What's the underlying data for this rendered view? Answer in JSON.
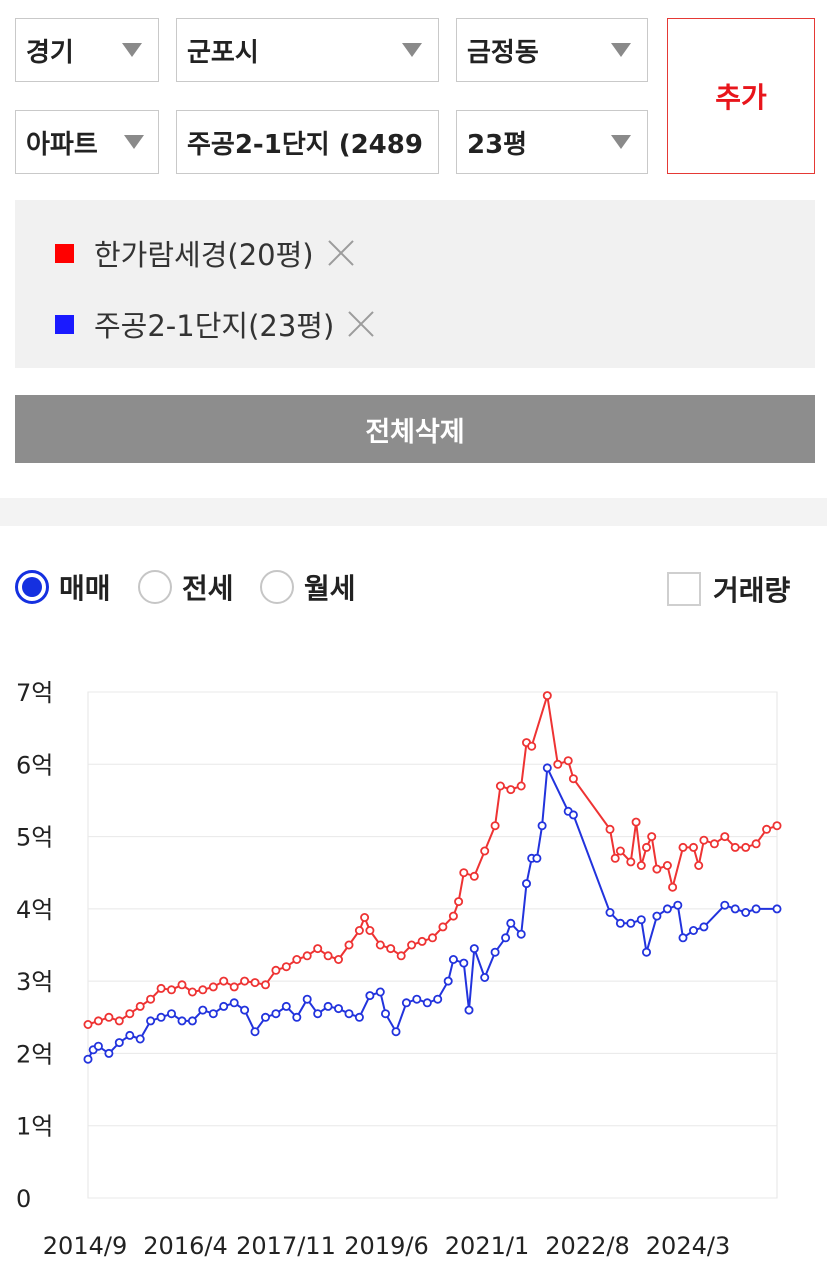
{
  "selectors": {
    "province": "경기",
    "city": "군포시",
    "district": "금정동",
    "property_type": "아파트",
    "complex": "주공2-1단지 (2489",
    "size": "23평"
  },
  "add_button": "추가",
  "compare_list": [
    {
      "label": "한가람세경(20평)",
      "color": "#ff0000"
    },
    {
      "label": "주공2-1단지(23평)",
      "color": "#1a1aff"
    }
  ],
  "delete_all_button": "전체삭제",
  "trade_types": {
    "sale": "매매",
    "jeonse": "전세",
    "monthly": "월세",
    "selected": "매매"
  },
  "volume_checkbox": {
    "label": "거래량",
    "checked": false
  },
  "chart_data": {
    "type": "line",
    "ylim": [
      0,
      7
    ],
    "ytick_labels": [
      "0",
      "1억",
      "2억",
      "3억",
      "4억",
      "5억",
      "6억",
      "7억"
    ],
    "x_tick_labels": [
      "2014/9",
      "2016/4",
      "2017/11",
      "2019/6",
      "2021/1",
      "2022/8",
      "2024/3"
    ],
    "x_range": [
      "2014-09",
      "2025-09"
    ],
    "grid": true,
    "series": [
      {
        "name": "한가람세경(20평)",
        "color": "#ee3333",
        "points": [
          [
            "2014-09",
            2.4
          ],
          [
            "2014-11",
            2.45
          ],
          [
            "2015-01",
            2.5
          ],
          [
            "2015-03",
            2.45
          ],
          [
            "2015-05",
            2.55
          ],
          [
            "2015-07",
            2.65
          ],
          [
            "2015-09",
            2.75
          ],
          [
            "2015-11",
            2.9
          ],
          [
            "2016-01",
            2.88
          ],
          [
            "2016-03",
            2.95
          ],
          [
            "2016-05",
            2.85
          ],
          [
            "2016-07",
            2.88
          ],
          [
            "2016-09",
            2.92
          ],
          [
            "2016-11",
            3.0
          ],
          [
            "2017-01",
            2.92
          ],
          [
            "2017-03",
            3.0
          ],
          [
            "2017-05",
            2.98
          ],
          [
            "2017-07",
            2.95
          ],
          [
            "2017-09",
            3.15
          ],
          [
            "2017-11",
            3.2
          ],
          [
            "2018-01",
            3.3
          ],
          [
            "2018-03",
            3.35
          ],
          [
            "2018-05",
            3.45
          ],
          [
            "2018-07",
            3.35
          ],
          [
            "2018-09",
            3.3
          ],
          [
            "2018-11",
            3.5
          ],
          [
            "2019-01",
            3.7
          ],
          [
            "2019-02",
            3.88
          ],
          [
            "2019-03",
            3.7
          ],
          [
            "2019-05",
            3.5
          ],
          [
            "2019-07",
            3.45
          ],
          [
            "2019-09",
            3.35
          ],
          [
            "2019-11",
            3.5
          ],
          [
            "2020-01",
            3.55
          ],
          [
            "2020-03",
            3.6
          ],
          [
            "2020-05",
            3.75
          ],
          [
            "2020-07",
            3.9
          ],
          [
            "2020-08",
            4.1
          ],
          [
            "2020-09",
            4.5
          ],
          [
            "2020-11",
            4.45
          ],
          [
            "2021-01",
            4.8
          ],
          [
            "2021-03",
            5.15
          ],
          [
            "2021-04",
            5.7
          ],
          [
            "2021-06",
            5.65
          ],
          [
            "2021-08",
            5.7
          ],
          [
            "2021-09",
            6.3
          ],
          [
            "2021-10",
            6.25
          ],
          [
            "2022-01",
            6.95
          ],
          [
            "2022-03",
            6.0
          ],
          [
            "2022-05",
            6.05
          ],
          [
            "2022-06",
            5.8
          ],
          [
            "2023-01",
            5.1
          ],
          [
            "2023-02",
            4.7
          ],
          [
            "2023-03",
            4.8
          ],
          [
            "2023-05",
            4.65
          ],
          [
            "2023-06",
            5.2
          ],
          [
            "2023-07",
            4.6
          ],
          [
            "2023-08",
            4.85
          ],
          [
            "2023-09",
            5.0
          ],
          [
            "2023-10",
            4.55
          ],
          [
            "2023-12",
            4.6
          ],
          [
            "2024-01",
            4.3
          ],
          [
            "2024-03",
            4.85
          ],
          [
            "2024-05",
            4.85
          ],
          [
            "2024-06",
            4.6
          ],
          [
            "2024-07",
            4.95
          ],
          [
            "2024-09",
            4.9
          ],
          [
            "2024-11",
            5.0
          ],
          [
            "2025-01",
            4.85
          ],
          [
            "2025-03",
            4.85
          ],
          [
            "2025-05",
            4.9
          ],
          [
            "2025-07",
            5.1
          ],
          [
            "2025-09",
            5.15
          ]
        ]
      },
      {
        "name": "주공2-1단지(23평)",
        "color": "#2233dd",
        "points": [
          [
            "2014-09",
            1.92
          ],
          [
            "2014-10",
            2.05
          ],
          [
            "2014-11",
            2.1
          ],
          [
            "2015-01",
            2.0
          ],
          [
            "2015-03",
            2.15
          ],
          [
            "2015-05",
            2.25
          ],
          [
            "2015-07",
            2.2
          ],
          [
            "2015-09",
            2.45
          ],
          [
            "2015-11",
            2.5
          ],
          [
            "2016-01",
            2.55
          ],
          [
            "2016-03",
            2.45
          ],
          [
            "2016-05",
            2.45
          ],
          [
            "2016-07",
            2.6
          ],
          [
            "2016-09",
            2.55
          ],
          [
            "2016-11",
            2.65
          ],
          [
            "2017-01",
            2.7
          ],
          [
            "2017-03",
            2.6
          ],
          [
            "2017-05",
            2.3
          ],
          [
            "2017-07",
            2.5
          ],
          [
            "2017-09",
            2.55
          ],
          [
            "2017-11",
            2.65
          ],
          [
            "2018-01",
            2.5
          ],
          [
            "2018-03",
            2.75
          ],
          [
            "2018-05",
            2.55
          ],
          [
            "2018-07",
            2.65
          ],
          [
            "2018-09",
            2.62
          ],
          [
            "2018-11",
            2.55
          ],
          [
            "2019-01",
            2.5
          ],
          [
            "2019-03",
            2.8
          ],
          [
            "2019-05",
            2.85
          ],
          [
            "2019-06",
            2.55
          ],
          [
            "2019-08",
            2.3
          ],
          [
            "2019-10",
            2.7
          ],
          [
            "2019-12",
            2.75
          ],
          [
            "2020-02",
            2.7
          ],
          [
            "2020-04",
            2.75
          ],
          [
            "2020-06",
            3.0
          ],
          [
            "2020-07",
            3.3
          ],
          [
            "2020-09",
            3.25
          ],
          [
            "2020-10",
            2.6
          ],
          [
            "2020-11",
            3.45
          ],
          [
            "2021-01",
            3.05
          ],
          [
            "2021-03",
            3.4
          ],
          [
            "2021-05",
            3.6
          ],
          [
            "2021-06",
            3.8
          ],
          [
            "2021-08",
            3.65
          ],
          [
            "2021-09",
            4.35
          ],
          [
            "2021-10",
            4.7
          ],
          [
            "2021-11",
            4.7
          ],
          [
            "2021-12",
            5.15
          ],
          [
            "2022-01",
            5.95
          ],
          [
            "2022-05",
            5.35
          ],
          [
            "2022-06",
            5.3
          ],
          [
            "2023-01",
            3.95
          ],
          [
            "2023-03",
            3.8
          ],
          [
            "2023-05",
            3.8
          ],
          [
            "2023-07",
            3.85
          ],
          [
            "2023-08",
            3.4
          ],
          [
            "2023-10",
            3.9
          ],
          [
            "2023-12",
            4.0
          ],
          [
            "2024-02",
            4.05
          ],
          [
            "2024-03",
            3.6
          ],
          [
            "2024-05",
            3.7
          ],
          [
            "2024-07",
            3.75
          ],
          [
            "2024-11",
            4.05
          ],
          [
            "2025-01",
            4.0
          ],
          [
            "2025-03",
            3.95
          ],
          [
            "2025-05",
            4.0
          ],
          [
            "2025-09",
            4.0
          ]
        ]
      }
    ]
  }
}
